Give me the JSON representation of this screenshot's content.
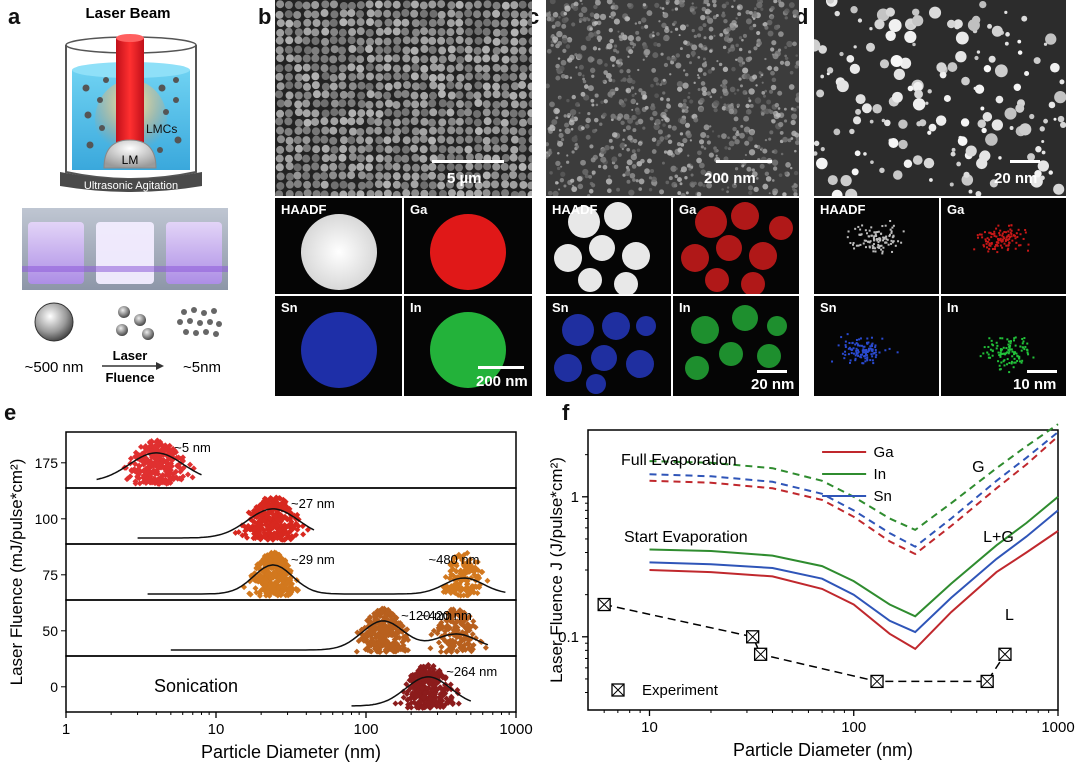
{
  "panel_labels": {
    "a": "a",
    "b": "b",
    "c": "c",
    "d": "d",
    "e": "e",
    "f": "f"
  },
  "panel_a": {
    "title": "Laser Beam",
    "lmcs": "LMCs",
    "lm": "LM",
    "agitation": "Ultrasonic Agitation",
    "size_large": "~500 nm",
    "size_small": "~5nm",
    "arrow_top": "Laser",
    "arrow_bottom": "Fluence"
  },
  "panel_b": {
    "scale": "5 µm",
    "map_scale": "200 nm",
    "maps": [
      "HAADF",
      "Ga",
      "Sn",
      "In"
    ]
  },
  "panel_c": {
    "scale": "200 nm",
    "map_scale": "20 nm",
    "maps": [
      "HAADF",
      "Ga",
      "Sn",
      "In"
    ]
  },
  "panel_d": {
    "scale": "20 nm",
    "map_scale": "10 nm",
    "maps": [
      "HAADF",
      "Ga",
      "Sn",
      "In"
    ]
  },
  "colors": {
    "ga": "#c0282d",
    "in": "#2f8c2f",
    "sn": "#2f55b8",
    "e1": "#e03030",
    "e2": "#d8281f",
    "e3": "#d2781e",
    "e4": "#b8601e",
    "e5": "#8c1c1c"
  },
  "chart_data": [
    {
      "type": "histogram",
      "panel": "e",
      "xlabel": "Particle Diameter (nm)",
      "ylabel": "Laser Fluence (mJ/pulse*cm²)",
      "xscale": "log",
      "xlim": [
        1,
        1000
      ],
      "xticks": [
        "1",
        "10",
        "100",
        "1000"
      ],
      "ytick_labels": [
        "175",
        "100",
        "75",
        "50",
        "0"
      ],
      "rows": [
        {
          "fluence": "175",
          "label": "~5 nm",
          "peak": 4,
          "spread": 0.18,
          "min": 1.6,
          "max": 8
        },
        {
          "fluence": "100",
          "label": "~27 nm",
          "peak": 24,
          "spread": 0.17,
          "min": 3,
          "max": 45
        },
        {
          "fluence": "75",
          "label": "~29 nm",
          "label2": "~480 nm",
          "peak": 24,
          "peak2": 450,
          "spread": 0.13,
          "min": 3.5,
          "max": 850
        },
        {
          "fluence": "50",
          "label": "~120 nm",
          "label2": "~420 nm",
          "peak": 130,
          "peak2": 400,
          "spread": 0.14,
          "min": 5,
          "max": 650
        },
        {
          "fluence": "0",
          "label": "~264 nm",
          "label_left": "Sonication",
          "peak": 260,
          "spread": 0.15,
          "min": 80,
          "max": 500
        }
      ]
    },
    {
      "type": "line",
      "panel": "f",
      "xlabel": "Particle Diameter (nm)",
      "ylabel": "Laser Fluence J (J/pulse*cm²)",
      "xscale": "log",
      "yscale": "log",
      "xlim": [
        5,
        1000
      ],
      "ylim": [
        0.03,
        3
      ],
      "xticks": [
        "10",
        "100",
        "1000"
      ],
      "yticks": [
        "0.1",
        "1"
      ],
      "legend": [
        "Ga",
        "In",
        "Sn"
      ],
      "annotations": [
        "Full Evaporation",
        "Start Evaporation",
        "G",
        "L+G",
        "L",
        "Experiment"
      ],
      "x": [
        10,
        20,
        40,
        70,
        100,
        150,
        200,
        300,
        500,
        700,
        1000
      ],
      "series": [
        {
          "name": "In",
          "phase": "start",
          "values": [
            0.42,
            0.41,
            0.38,
            0.32,
            0.25,
            0.17,
            0.14,
            0.24,
            0.45,
            0.65,
            1.0
          ]
        },
        {
          "name": "Sn",
          "phase": "start",
          "values": [
            0.34,
            0.33,
            0.31,
            0.26,
            0.2,
            0.13,
            0.108,
            0.19,
            0.36,
            0.52,
            0.8
          ]
        },
        {
          "name": "Ga",
          "phase": "start",
          "values": [
            0.3,
            0.29,
            0.27,
            0.22,
            0.17,
            0.105,
            0.082,
            0.15,
            0.29,
            0.4,
            0.57
          ]
        },
        {
          "name": "In",
          "phase": "full",
          "values": [
            1.8,
            1.75,
            1.6,
            1.3,
            1.0,
            0.7,
            0.58,
            0.9,
            1.6,
            2.3,
            3.3
          ]
        },
        {
          "name": "Sn",
          "phase": "full",
          "values": [
            1.45,
            1.4,
            1.28,
            1.05,
            0.8,
            0.55,
            0.44,
            0.7,
            1.3,
            1.9,
            2.9
          ]
        },
        {
          "name": "Ga",
          "phase": "full",
          "values": [
            1.3,
            1.26,
            1.15,
            0.95,
            0.72,
            0.48,
            0.39,
            0.62,
            1.15,
            1.7,
            2.7
          ]
        }
      ],
      "experiment": {
        "x": [
          6,
          32,
          35,
          130,
          450,
          550
        ],
        "y": [
          0.17,
          0.1,
          0.075,
          0.048,
          0.048,
          0.075
        ]
      }
    }
  ]
}
